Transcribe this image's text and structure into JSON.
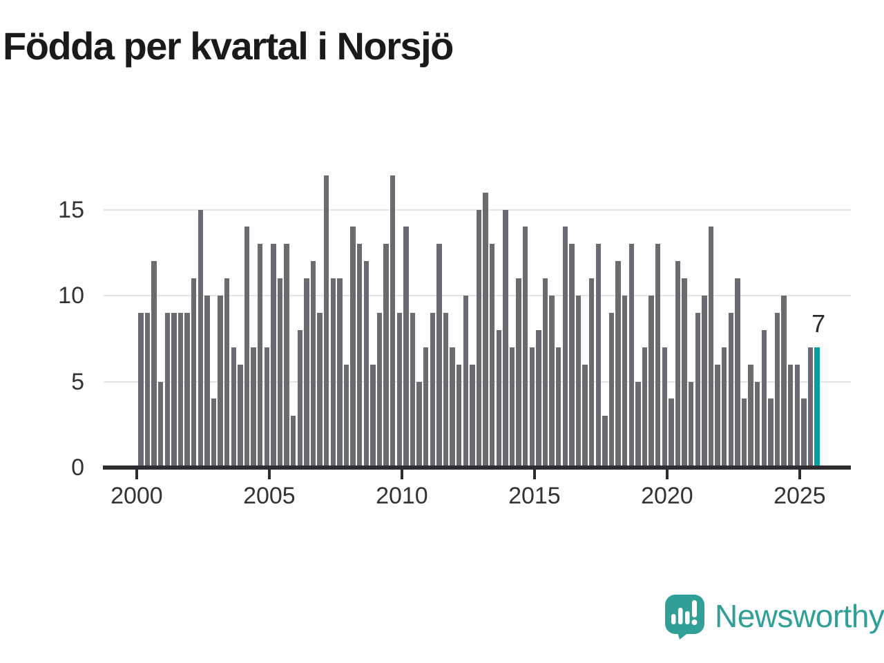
{
  "title": "Födda per kvartal i Norsjö",
  "branding": {
    "name": "Newsworthy"
  },
  "chart_data": {
    "type": "bar",
    "title": "Födda per kvartal i Norsjö",
    "unit_period": "quarter",
    "start_period": "2000-Q1",
    "end_period": "2025-Q3",
    "values": [
      9,
      9,
      12,
      5,
      9,
      9,
      9,
      9,
      11,
      15,
      10,
      4,
      10,
      11,
      7,
      6,
      14,
      7,
      13,
      7,
      13,
      11,
      13,
      3,
      8,
      11,
      12,
      9,
      17,
      11,
      11,
      6,
      14,
      13,
      12,
      6,
      9,
      13,
      17,
      9,
      14,
      9,
      5,
      7,
      9,
      13,
      9,
      7,
      6,
      10,
      6,
      15,
      16,
      13,
      8,
      15,
      7,
      11,
      14,
      7,
      8,
      11,
      10,
      7,
      14,
      13,
      10,
      6,
      11,
      13,
      3,
      9,
      12,
      10,
      13,
      5,
      7,
      10,
      13,
      7,
      4,
      12,
      11,
      5,
      9,
      10,
      14,
      6,
      7,
      9,
      11,
      4,
      6,
      5,
      8,
      4,
      9,
      10,
      6,
      6,
      4,
      7,
      7
    ],
    "x_tick_labels": [
      "2000",
      "2005",
      "2010",
      "2015",
      "2020",
      "2025"
    ],
    "yticks": [
      0,
      5,
      10,
      15
    ],
    "ylim": [
      0,
      17.5
    ],
    "grid": "horizontal",
    "legend_position": "none",
    "bar_color": "#6b6a70",
    "highlight_color": "#00a29b",
    "highlight_index": 102,
    "annotation": {
      "text": "7",
      "value": 7
    }
  }
}
